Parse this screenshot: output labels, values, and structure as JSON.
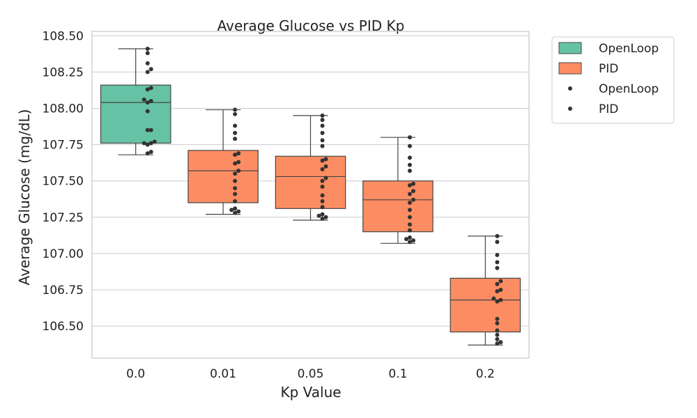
{
  "chart_data": {
    "type": "box",
    "title": "Average Glucose vs PID Kp",
    "xlabel": "Kp Value",
    "ylabel": "Average Glucose (mg/dL)",
    "ylim": [
      106.28,
      108.53
    ],
    "yticks": [
      "106.50",
      "106.75",
      "107.00",
      "107.25",
      "107.50",
      "107.75",
      "108.00",
      "108.25",
      "108.50"
    ],
    "grid": true,
    "legend_position": "outside-top-right",
    "legend": [
      {
        "label": "OpenLoop",
        "kind": "patch",
        "color": "#66c2a5"
      },
      {
        "label": "PID",
        "kind": "patch",
        "color": "#fc8d62"
      },
      {
        "label": "OpenLoop",
        "kind": "point",
        "color": "#333333"
      },
      {
        "label": "PID",
        "kind": "point",
        "color": "#333333"
      }
    ],
    "categories": [
      "0.0",
      "0.01",
      "0.05",
      "0.1",
      "0.2"
    ],
    "boxes": [
      {
        "category": "0.0",
        "series": "OpenLoop",
        "color": "#66c2a5",
        "whisker_low": 107.68,
        "q1": 107.76,
        "median": 108.04,
        "q3": 108.16,
        "whisker_high": 108.41,
        "points": [
          108.41,
          108.38,
          108.31,
          108.27,
          108.25,
          108.14,
          108.13,
          108.06,
          108.05,
          108.04,
          107.98,
          107.85,
          107.85,
          107.77,
          107.76,
          107.76,
          107.75,
          107.7,
          107.69
        ]
      },
      {
        "category": "0.01",
        "series": "PID",
        "color": "#fc8d62",
        "whisker_low": 107.27,
        "q1": 107.35,
        "median": 107.57,
        "q3": 107.71,
        "whisker_high": 107.99,
        "points": [
          107.99,
          107.96,
          107.88,
          107.83,
          107.79,
          107.69,
          107.68,
          107.63,
          107.62,
          107.57,
          107.55,
          107.5,
          107.45,
          107.41,
          107.36,
          107.31,
          107.3,
          107.29,
          107.28
        ]
      },
      {
        "category": "0.05",
        "series": "PID",
        "color": "#fc8d62",
        "whisker_low": 107.23,
        "q1": 107.31,
        "median": 107.53,
        "q3": 107.67,
        "whisker_high": 107.95,
        "points": [
          107.95,
          107.92,
          107.88,
          107.83,
          107.78,
          107.74,
          107.65,
          107.64,
          107.6,
          107.58,
          107.52,
          107.5,
          107.46,
          107.4,
          107.36,
          107.32,
          107.27,
          107.26,
          107.25,
          107.24
        ]
      },
      {
        "category": "0.1",
        "series": "PID",
        "color": "#fc8d62",
        "whisker_low": 107.07,
        "q1": 107.15,
        "median": 107.37,
        "q3": 107.5,
        "whisker_high": 107.8,
        "points": [
          107.8,
          107.74,
          107.66,
          107.61,
          107.57,
          107.48,
          107.47,
          107.43,
          107.41,
          107.37,
          107.35,
          107.3,
          107.25,
          107.2,
          107.16,
          107.11,
          107.1,
          107.09,
          107.08
        ]
      },
      {
        "category": "0.2",
        "series": "PID",
        "color": "#fc8d62",
        "whisker_low": 106.37,
        "q1": 106.46,
        "median": 106.68,
        "q3": 106.83,
        "whisker_high": 107.12,
        "points": [
          107.12,
          107.08,
          106.99,
          106.94,
          106.9,
          106.81,
          106.79,
          106.75,
          106.74,
          106.69,
          106.68,
          106.67,
          106.55,
          106.52,
          106.47,
          106.44,
          106.41,
          106.39,
          106.38
        ]
      }
    ]
  }
}
